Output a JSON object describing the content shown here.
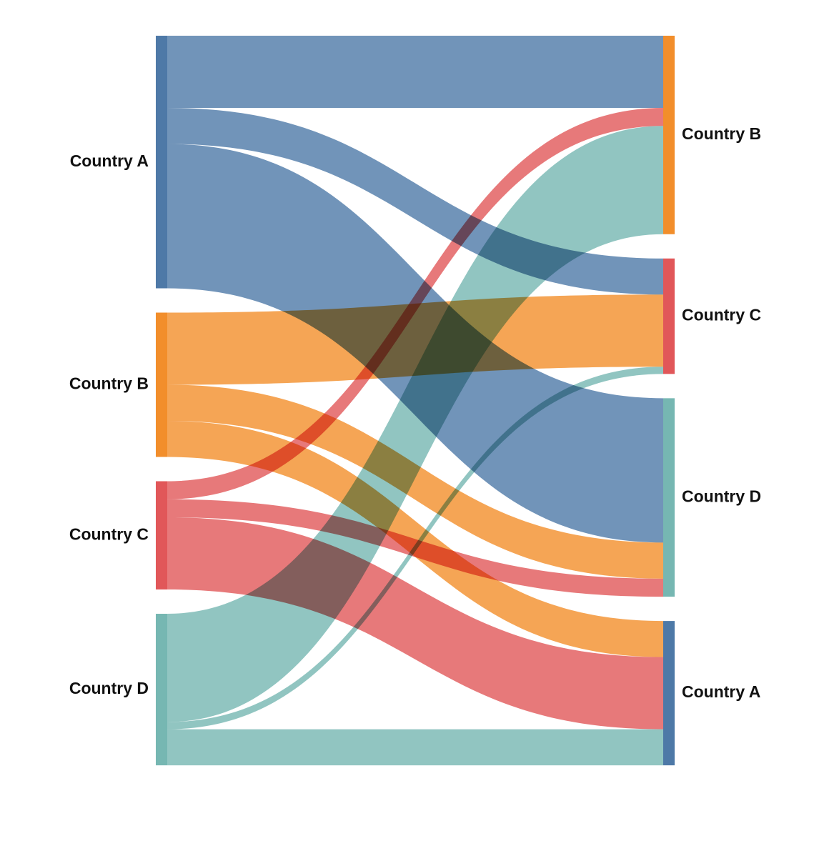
{
  "chart_data": {
    "type": "sankey",
    "title": "",
    "sources": [
      {
        "id": "src-a",
        "label": "Country A",
        "color": "#4e79a7"
      },
      {
        "id": "src-b",
        "label": "Country B",
        "color": "#f28e2b"
      },
      {
        "id": "src-c",
        "label": "Country C",
        "color": "#e15759"
      },
      {
        "id": "src-d",
        "label": "Country D",
        "color": "#76b7b2"
      }
    ],
    "targets": [
      {
        "id": "tgt-b",
        "label": "Country B",
        "color": "#f28e2b"
      },
      {
        "id": "tgt-c",
        "label": "Country C",
        "color": "#e15759"
      },
      {
        "id": "tgt-d",
        "label": "Country D",
        "color": "#76b7b2"
      },
      {
        "id": "tgt-a",
        "label": "Country A",
        "color": "#4e79a7"
      }
    ],
    "flows": [
      {
        "source": "src-a",
        "target": "tgt-b",
        "value": 10
      },
      {
        "source": "src-a",
        "target": "tgt-c",
        "value": 5
      },
      {
        "source": "src-a",
        "target": "tgt-d",
        "value": 20
      },
      {
        "source": "src-b",
        "target": "tgt-c",
        "value": 10
      },
      {
        "source": "src-b",
        "target": "tgt-d",
        "value": 5
      },
      {
        "source": "src-b",
        "target": "tgt-a",
        "value": 5
      },
      {
        "source": "src-c",
        "target": "tgt-b",
        "value": 2.5
      },
      {
        "source": "src-c",
        "target": "tgt-d",
        "value": 2.5
      },
      {
        "source": "src-c",
        "target": "tgt-a",
        "value": 10
      },
      {
        "source": "src-d",
        "target": "tgt-b",
        "value": 15
      },
      {
        "source": "src-d",
        "target": "tgt-c",
        "value": 1
      },
      {
        "source": "src-d",
        "target": "tgt-a",
        "value": 5
      }
    ]
  }
}
